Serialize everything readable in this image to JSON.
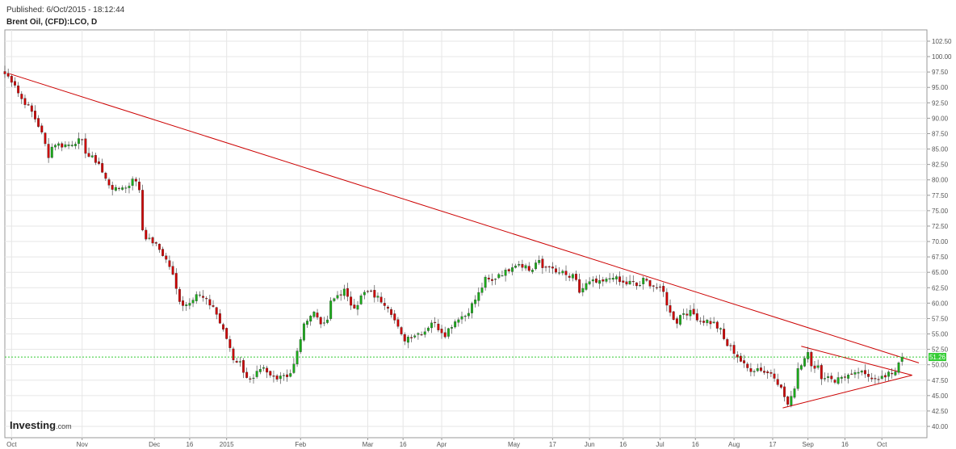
{
  "header": {
    "published": "Published: 6/Oct/2015 - 18:12:44",
    "title": "Brent Oil, (CFD):LCO, D"
  },
  "brand": {
    "name": "Investing",
    "suffix": ".com"
  },
  "colors": {
    "up": "#1aaa1a",
    "down": "#cc0000",
    "trend": "#cc0000",
    "last": "#33cc33",
    "grid": "#e6e6e6"
  },
  "chart_data": {
    "type": "candlestick",
    "interval": "D",
    "ylim": [
      39.5,
      103.5
    ],
    "xlim": [
      0,
      54.4
    ],
    "y_ticks": [
      "102.50",
      "100.00",
      "97.50",
      "95.00",
      "92.50",
      "90.00",
      "87.50",
      "85.00",
      "82.50",
      "80.00",
      "77.50",
      "75.00",
      "72.50",
      "70.00",
      "67.50",
      "65.00",
      "62.50",
      "60.00",
      "57.50",
      "55.00",
      "52.50",
      "50.00",
      "47.50",
      "45.00",
      "42.50",
      "40.00"
    ],
    "x_ticks": [
      {
        "label": "Oct",
        "week": 0.4
      },
      {
        "label": "Nov",
        "week": 4.6
      },
      {
        "label": "Dec",
        "week": 8.9
      },
      {
        "label": "16",
        "week": 11.0
      },
      {
        "label": "2015",
        "week": 13.2
      },
      {
        "label": "Feb",
        "week": 17.6
      },
      {
        "label": "Mar",
        "week": 21.6
      },
      {
        "label": "16",
        "week": 23.7
      },
      {
        "label": "Apr",
        "week": 26.0
      },
      {
        "label": "May",
        "week": 30.3
      },
      {
        "label": "17",
        "week": 32.6
      },
      {
        "label": "Jun",
        "week": 34.8
      },
      {
        "label": "16",
        "week": 36.8
      },
      {
        "label": "Jul",
        "week": 39.0
      },
      {
        "label": "16",
        "week": 41.1
      },
      {
        "label": "Aug",
        "week": 43.4
      },
      {
        "label": "17",
        "week": 45.7
      },
      {
        "label": "Sep",
        "week": 47.8
      },
      {
        "label": "16",
        "week": 50.0
      },
      {
        "label": "Oct",
        "week": 52.2
      }
    ],
    "last_price": "51.26",
    "last_value": 51.26,
    "trendlines": [
      {
        "from": [
          0.3,
          97.2
        ],
        "to": [
          54.4,
          50.3
        ]
      },
      {
        "from": [
          46.3,
          43.0
        ],
        "to": [
          54.0,
          48.3
        ]
      },
      {
        "from": [
          47.4,
          53.0
        ],
        "to": [
          54.0,
          48.3
        ]
      }
    ],
    "anchors": [
      [
        0,
        97.2
      ],
      [
        0.3,
        96.5
      ],
      [
        0.6,
        95.6
      ],
      [
        0.9,
        93.4
      ],
      [
        1.2,
        92.6
      ],
      [
        1.6,
        91.0
      ],
      [
        1.9,
        89.4
      ],
      [
        2.1,
        88.3
      ],
      [
        2.4,
        85.7
      ],
      [
        2.6,
        84.0
      ],
      [
        2.9,
        86.0
      ],
      [
        3.3,
        85.6
      ],
      [
        3.8,
        85.7
      ],
      [
        4.3,
        86.4
      ],
      [
        4.6,
        86.0
      ],
      [
        4.9,
        84.0
      ],
      [
        5.3,
        83.3
      ],
      [
        5.6,
        82.7
      ],
      [
        5.9,
        80.4
      ],
      [
        6.3,
        79.0
      ],
      [
        6.6,
        78.3
      ],
      [
        7.0,
        79.0
      ],
      [
        7.3,
        78.5
      ],
      [
        7.6,
        80.5
      ],
      [
        8.0,
        78.5
      ],
      [
        8.2,
        72.0
      ],
      [
        8.5,
        70.2
      ],
      [
        8.8,
        70.0
      ],
      [
        9.0,
        69.3
      ],
      [
        9.3,
        68.4
      ],
      [
        9.6,
        67.0
      ],
      [
        9.9,
        65.5
      ],
      [
        10.2,
        62.2
      ],
      [
        10.4,
        60.6
      ],
      [
        10.7,
        59.5
      ],
      [
        11.0,
        60.4
      ],
      [
        11.4,
        61.5
      ],
      [
        11.7,
        61.0
      ],
      [
        12.1,
        60.0
      ],
      [
        12.4,
        59.5
      ],
      [
        12.7,
        57.5
      ],
      [
        13.0,
        55.4
      ],
      [
        13.3,
        53.7
      ],
      [
        13.6,
        51.0
      ],
      [
        14.0,
        50.3
      ],
      [
        14.3,
        48.5
      ],
      [
        14.7,
        47.0
      ],
      [
        15.0,
        48.5
      ],
      [
        15.4,
        49.2
      ],
      [
        15.7,
        48.2
      ],
      [
        16.1,
        48.0
      ],
      [
        16.5,
        48.5
      ],
      [
        16.8,
        48.3
      ],
      [
        17.1,
        48.9
      ],
      [
        17.4,
        52.0
      ],
      [
        17.7,
        55.5
      ],
      [
        18.0,
        57.6
      ],
      [
        18.4,
        58.5
      ],
      [
        18.8,
        57.0
      ],
      [
        19.1,
        56.0
      ],
      [
        19.4,
        60.0
      ],
      [
        19.8,
        61.3
      ],
      [
        20.2,
        62.0
      ],
      [
        20.5,
        60.0
      ],
      [
        20.9,
        59.5
      ],
      [
        21.3,
        61.5
      ],
      [
        21.7,
        61.8
      ],
      [
        22.1,
        61.0
      ],
      [
        22.5,
        60.3
      ],
      [
        22.9,
        59.3
      ],
      [
        23.3,
        56.5
      ],
      [
        23.7,
        54.0
      ],
      [
        24.1,
        54.7
      ],
      [
        24.5,
        55.0
      ],
      [
        25.0,
        55.5
      ],
      [
        25.4,
        57.0
      ],
      [
        25.8,
        56.0
      ],
      [
        26.2,
        55.0
      ],
      [
        26.6,
        56.5
      ],
      [
        27.0,
        57.7
      ],
      [
        27.4,
        58.0
      ],
      [
        27.8,
        59.7
      ],
      [
        28.2,
        61.5
      ],
      [
        28.6,
        63.8
      ],
      [
        29.0,
        63.5
      ],
      [
        29.4,
        64.8
      ],
      [
        29.8,
        65.0
      ],
      [
        30.2,
        66.2
      ],
      [
        30.6,
        66.5
      ],
      [
        31.0,
        66.0
      ],
      [
        31.3,
        65.0
      ],
      [
        31.7,
        67.0
      ],
      [
        32.0,
        65.7
      ],
      [
        32.4,
        66.2
      ],
      [
        32.7,
        64.8
      ],
      [
        33.1,
        65.0
      ],
      [
        33.5,
        64.2
      ],
      [
        33.9,
        64.2
      ],
      [
        34.2,
        61.8
      ],
      [
        34.6,
        63.0
      ],
      [
        35.0,
        63.4
      ],
      [
        35.4,
        63.2
      ],
      [
        35.8,
        63.6
      ],
      [
        36.2,
        64.5
      ],
      [
        36.5,
        63.5
      ],
      [
        36.9,
        63.1
      ],
      [
        37.3,
        63.4
      ],
      [
        37.7,
        62.6
      ],
      [
        38.0,
        63.7
      ],
      [
        38.4,
        63.2
      ],
      [
        38.8,
        62.5
      ],
      [
        39.2,
        61.7
      ],
      [
        39.6,
        58.3
      ],
      [
        40.0,
        57.0
      ],
      [
        40.3,
        58.5
      ],
      [
        40.7,
        58.5
      ],
      [
        41.0,
        58.2
      ],
      [
        41.4,
        57.2
      ],
      [
        41.8,
        57.1
      ],
      [
        42.2,
        56.7
      ],
      [
        42.6,
        55.5
      ],
      [
        42.9,
        53.4
      ],
      [
        43.3,
        52.5
      ],
      [
        43.7,
        51.0
      ],
      [
        44.1,
        49.5
      ],
      [
        44.5,
        49.2
      ],
      [
        44.9,
        49.5
      ],
      [
        45.3,
        48.6
      ],
      [
        45.7,
        48.8
      ],
      [
        46.0,
        47.2
      ],
      [
        46.3,
        45.5
      ],
      [
        46.6,
        43.5
      ],
      [
        46.9,
        45.0
      ],
      [
        47.2,
        49.5
      ],
      [
        47.5,
        50.5
      ],
      [
        47.8,
        52.5
      ],
      [
        48.1,
        49.0
      ],
      [
        48.4,
        49.5
      ],
      [
        48.7,
        47.5
      ],
      [
        49.0,
        48.3
      ],
      [
        49.4,
        47.4
      ],
      [
        49.8,
        48.0
      ],
      [
        50.1,
        48.3
      ],
      [
        50.5,
        48.0
      ],
      [
        50.8,
        48.9
      ],
      [
        51.2,
        48.2
      ],
      [
        51.6,
        48.1
      ],
      [
        52.0,
        48.0
      ],
      [
        52.4,
        47.9
      ],
      [
        52.7,
        48.6
      ],
      [
        53.0,
        49.0
      ],
      [
        53.3,
        51.26
      ]
    ]
  }
}
